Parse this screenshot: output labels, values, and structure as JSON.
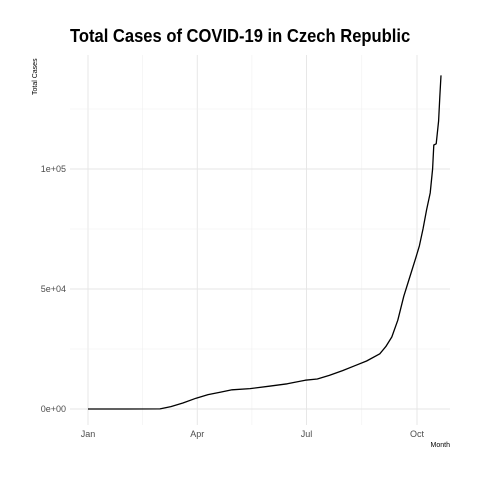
{
  "chart_data": {
    "type": "line",
    "title": "Total Cases of COVID-19 in Czech Republic",
    "xlabel": "Month",
    "ylabel": "Total Cases",
    "x_ticks": [
      "Jan",
      "Apr",
      "Jul",
      "Oct"
    ],
    "y_ticks": [
      "0e+00",
      "5e+04",
      "1e+05"
    ],
    "y_tick_values": [
      0,
      50000,
      100000
    ],
    "ylim": [
      0,
      140000
    ],
    "grid": true,
    "line_color": "#000000",
    "series": [
      {
        "x": [
          "2020-01-01",
          "2020-02-01",
          "2020-03-01",
          "2020-03-10",
          "2020-03-20",
          "2020-03-31",
          "2020-04-10",
          "2020-04-20",
          "2020-04-30",
          "2020-05-15",
          "2020-05-31",
          "2020-06-15",
          "2020-06-30",
          "2020-07-10",
          "2020-07-20",
          "2020-07-31",
          "2020-08-10",
          "2020-08-20",
          "2020-08-31",
          "2020-09-05",
          "2020-09-10",
          "2020-09-15",
          "2020-09-20",
          "2020-09-25",
          "2020-09-30",
          "2020-10-03",
          "2020-10-06",
          "2020-10-09",
          "2020-10-12",
          "2020-10-14",
          "2020-10-15",
          "2020-10-17",
          "2020-10-19",
          "2020-10-20",
          "2020-10-21"
        ],
        "y": [
          0,
          0,
          50,
          1000,
          2500,
          4500,
          6000,
          7000,
          8000,
          8500,
          9500,
          10500,
          12000,
          12500,
          14000,
          16000,
          18000,
          20000,
          23000,
          26000,
          30000,
          37000,
          47000,
          55000,
          63000,
          68000,
          75000,
          83000,
          90000,
          100000,
          110000,
          110500,
          120000,
          130000,
          139000
        ]
      }
    ]
  }
}
